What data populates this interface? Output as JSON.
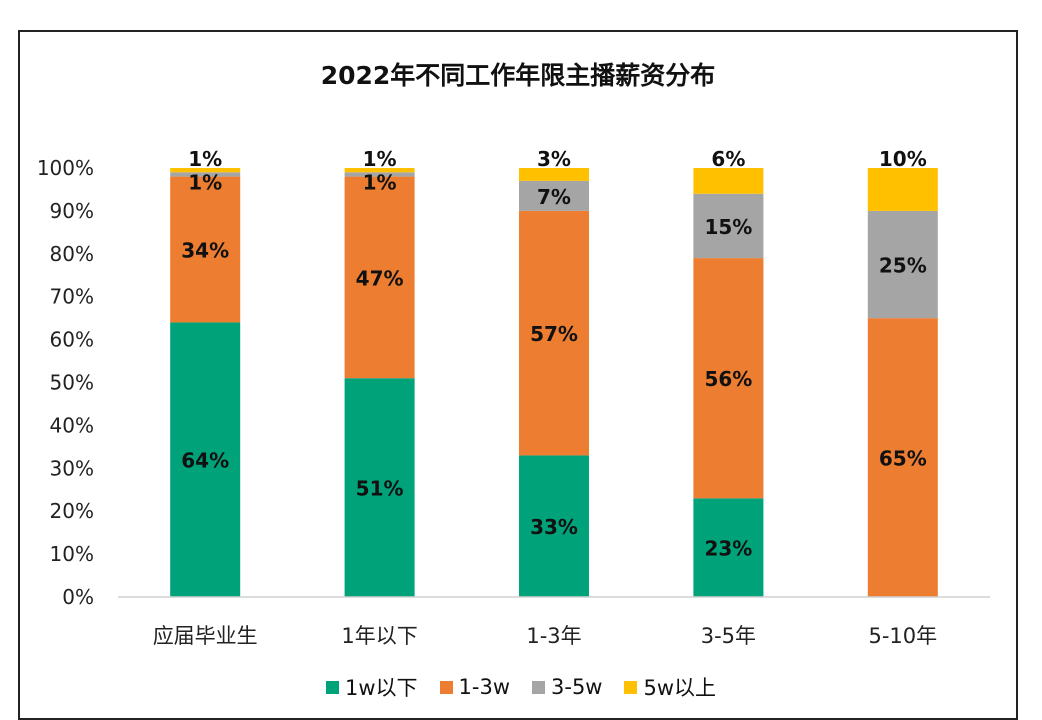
{
  "chart_data": {
    "type": "bar",
    "stacked": true,
    "title": "2022年不同工作年限主播薪资分布",
    "categories": [
      "应届毕业生",
      "1年以下",
      "1-3年",
      "3-5年",
      "5-10年"
    ],
    "y_ticks": [
      "0%",
      "10%",
      "20%",
      "30%",
      "40%",
      "50%",
      "60%",
      "70%",
      "80%",
      "90%",
      "100%"
    ],
    "ylim": [
      0,
      100
    ],
    "legend_position": "bottom",
    "series": [
      {
        "name": "1w以下",
        "color": "#00A27A",
        "values": [
          64,
          51,
          33,
          23,
          0
        ],
        "labels": [
          "64%",
          "51%",
          "33%",
          "23%",
          ""
        ]
      },
      {
        "name": "1-3w",
        "color": "#ED7D31",
        "values": [
          34,
          47,
          57,
          56,
          65
        ],
        "labels": [
          "34%",
          "47%",
          "57%",
          "56%",
          "65%"
        ]
      },
      {
        "name": "3-5w",
        "color": "#A5A5A5",
        "values": [
          1,
          1,
          7,
          15,
          25
        ],
        "labels": [
          "1%",
          "1%",
          "7%",
          "15%",
          "25%"
        ]
      },
      {
        "name": "5w以上",
        "color": "#FFC000",
        "values": [
          1,
          1,
          3,
          6,
          10
        ],
        "labels": [
          "1%",
          "1%",
          "3%",
          "6%",
          "10%"
        ]
      }
    ]
  }
}
